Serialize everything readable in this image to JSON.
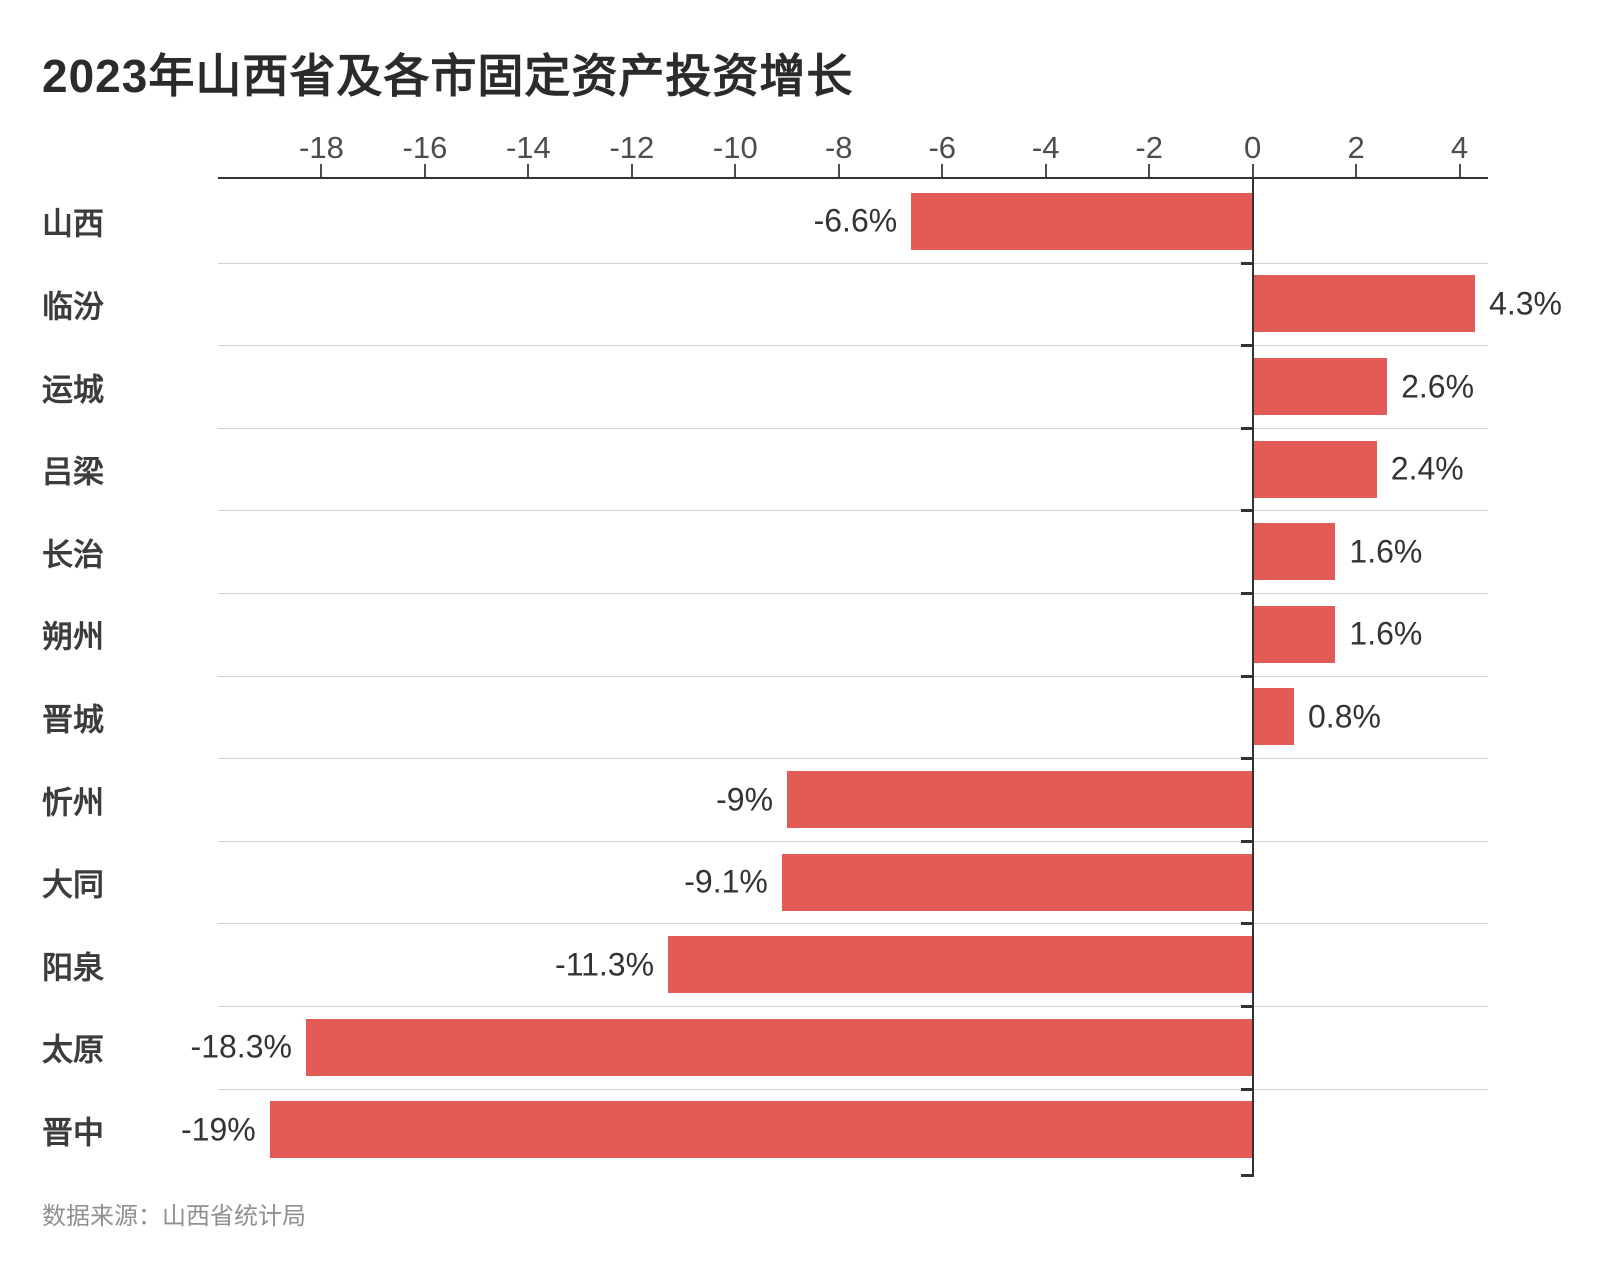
{
  "header": {
    "title": "2023年山西省及各市固定资产投资增长"
  },
  "footer": {
    "source": "数据来源：山西省统计局"
  },
  "colors": {
    "bar": "#E25B56",
    "axis": "#333333",
    "grid": "#d0d0d0",
    "tick_label": "#4d4d4d",
    "value_label": "#333333",
    "row_label": "#3c3c3c",
    "title": "#2b2b2b",
    "source": "#909090"
  },
  "chart_data": {
    "type": "bar",
    "orientation": "horizontal",
    "title": "2023年山西省及各市固定资产投资增长",
    "source": "数据来源：山西省统计局",
    "categories": [
      "山西",
      "临汾",
      "运城",
      "吕梁",
      "长治",
      "朔州",
      "晋城",
      "忻州",
      "大同",
      "阳泉",
      "太原",
      "晋中"
    ],
    "values": [
      -6.6,
      4.3,
      2.6,
      2.4,
      1.6,
      1.6,
      0.8,
      -9,
      -9.1,
      -11.3,
      -18.3,
      -19
    ],
    "value_labels": [
      "-6.6%",
      "4.3%",
      "2.6%",
      "2.4%",
      "1.6%",
      "1.6%",
      "0.8%",
      "-9%",
      "-9.1%",
      "-11.3%",
      "-18.3%",
      "-19%"
    ],
    "x_ticks": [
      -18,
      -16,
      -14,
      -12,
      -10,
      -8,
      -6,
      -4,
      -2,
      0,
      2,
      4
    ],
    "x_tick_labels": [
      "-18",
      "-16",
      "-14",
      "-12",
      "-10",
      "-8",
      "-6",
      "-4",
      "-2",
      "0",
      "2",
      "4"
    ],
    "xlim": [
      -20,
      4.55
    ],
    "unit": "%",
    "grid": true,
    "legend_position": "none",
    "bar_color": "#E25B56"
  }
}
